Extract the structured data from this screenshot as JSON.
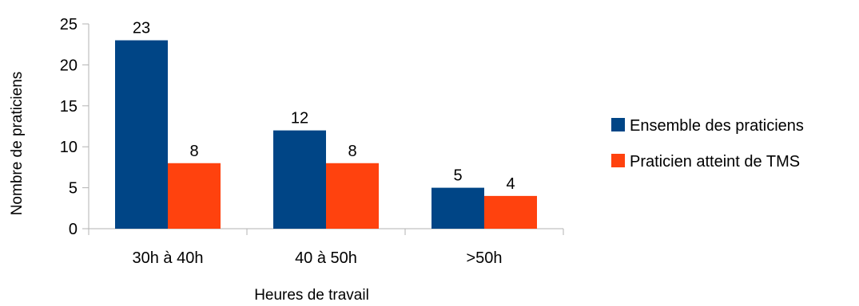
{
  "chart_data": {
    "type": "bar",
    "categories": [
      "30h à 40h",
      "40 à 50h",
      ">50h"
    ],
    "series": [
      {
        "name": "Ensemble des praticiens",
        "values": [
          23,
          12,
          5
        ],
        "color": "#004586"
      },
      {
        "name": "Praticien atteint de TMS",
        "values": [
          8,
          8,
          4
        ],
        "color": "#ff420e"
      }
    ],
    "title": "",
    "xlabel": "Heures de travail",
    "ylabel": "Nombre de praticiens",
    "ylim": [
      0,
      25
    ],
    "yticks": [
      0,
      5,
      10,
      15,
      20,
      25
    ],
    "grid": false,
    "data_labels": true,
    "legend_position": "right"
  }
}
